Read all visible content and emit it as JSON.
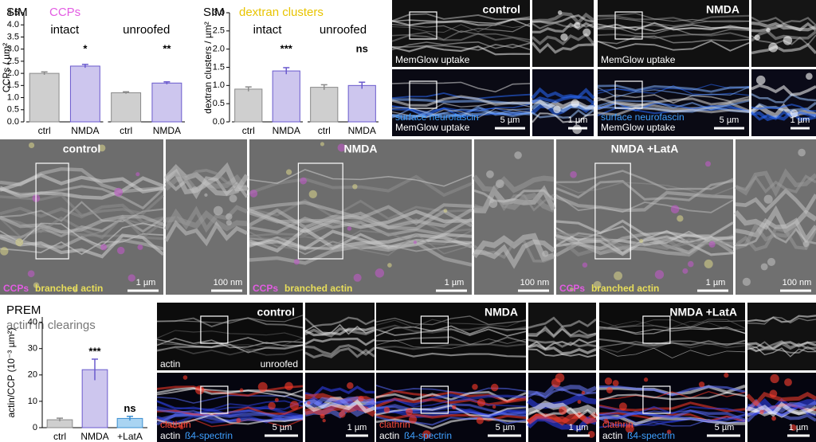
{
  "chart_data": [
    {
      "type": "bar",
      "title": "SIM",
      "subtitle": "CCPs",
      "subtitle_color": "#e35ce3",
      "ylabel": "CCPs / µm²",
      "groups": [
        "intact",
        "unroofed"
      ],
      "categories": [
        "ctrl",
        "NMDA",
        "ctrl",
        "NMDA"
      ],
      "values": [
        2.0,
        2.3,
        1.2,
        1.6
      ],
      "errors": [
        0.06,
        0.07,
        0.04,
        0.05
      ],
      "annotations": [
        null,
        "*",
        null,
        "**"
      ],
      "colors": [
        "#cfcfcf",
        "#cdc6ee",
        "#cfcfcf",
        "#cdc6ee"
      ],
      "edge_colors": [
        "#8a8a8a",
        "#6a5acd",
        "#8a8a8a",
        "#6a5acd"
      ],
      "ylim": [
        0,
        4.5
      ],
      "yticks": [
        {
          "value": 0,
          "label": "0.0"
        },
        {
          "value": 0.5,
          "label": "0.5"
        },
        {
          "value": 1,
          "label": "1.0"
        },
        {
          "value": 1.5,
          "label": "1.5"
        },
        {
          "value": 2,
          "label": "2.0"
        },
        {
          "value": 2.5,
          "label": "2.5"
        },
        {
          "value": 3,
          "label": "3.0"
        },
        {
          "value": 3.5,
          "label": "3.5"
        },
        {
          "value": 4,
          "label": "4.0"
        },
        {
          "value": 4.5,
          "label": "4.5"
        }
      ]
    },
    {
      "type": "bar",
      "title": "SIM",
      "subtitle": "dextran clusters",
      "subtitle_color": "#e8c400",
      "ylabel": "dextran clusters / µm²",
      "groups": [
        "intact",
        "unroofed"
      ],
      "categories": [
        "ctrl",
        "NMDA",
        "ctrl",
        "NMDA"
      ],
      "values": [
        0.9,
        1.4,
        0.95,
        1.0
      ],
      "errors": [
        0.06,
        0.09,
        0.07,
        0.09
      ],
      "annotations": [
        null,
        "***",
        null,
        "ns"
      ],
      "colors": [
        "#cfcfcf",
        "#cdc6ee",
        "#cfcfcf",
        "#cdc6ee"
      ],
      "edge_colors": [
        "#8a8a8a",
        "#6a5acd",
        "#8a8a8a",
        "#6a5acd"
      ],
      "ylim": [
        0,
        3
      ],
      "yticks": [
        {
          "value": 0,
          "label": "0.0"
        },
        {
          "value": 0.5,
          "label": "0.5"
        },
        {
          "value": 1,
          "label": "1.0"
        },
        {
          "value": 1.5,
          "label": "1.5"
        },
        {
          "value": 2,
          "label": "2.0"
        },
        {
          "value": 2.5,
          "label": "2.5"
        },
        {
          "value": 3,
          "label": "3.0"
        }
      ]
    },
    {
      "type": "bar",
      "title": "PREM",
      "subtitle": "actin in clearings",
      "subtitle_color": "#777777",
      "ylabel": "actin/CCP (10⁻³ µm²)",
      "categories": [
        "ctrl",
        "NMDA",
        "+LatA"
      ],
      "values": [
        3,
        22,
        3.5
      ],
      "errors": [
        0.6,
        4,
        0.8
      ],
      "annotations": [
        null,
        "***",
        "ns"
      ],
      "colors": [
        "#cfcfcf",
        "#cdc6ee",
        "#a9d4f2"
      ],
      "edge_colors": [
        "#8a8a8a",
        "#6a5acd",
        "#3b8fd1"
      ],
      "ylim": [
        0,
        42
      ],
      "yticks": [
        0,
        10,
        20,
        30,
        40
      ]
    }
  ],
  "sim_images": {
    "panels": [
      {
        "condition": "control",
        "top_label": "MemGlow uptake",
        "bottom_labels": [
          "surface neurofascin",
          "MemGlow uptake"
        ],
        "scale_main": "5 µm",
        "scale_zoom": "1 µm"
      },
      {
        "condition": "NMDA",
        "top_label": "MemGlow uptake",
        "bottom_labels": [
          "surface neurofascin",
          "MemGlow uptake"
        ],
        "scale_main": "5 µm",
        "scale_zoom": "1 µm"
      }
    ]
  },
  "prem_images": {
    "panels": [
      {
        "condition": "control",
        "labels": [
          "CCPs",
          "branched actin"
        ],
        "scale_main": "1 µm",
        "scale_zoom": "100 nm"
      },
      {
        "condition": "NMDA",
        "labels": [
          "CCPs",
          "branched actin"
        ],
        "scale_main": "1 µm",
        "scale_zoom": "100 nm"
      },
      {
        "condition": "NMDA +LatA",
        "labels": [
          "CCPs",
          "branched actin"
        ],
        "scale_main": "1 µm",
        "scale_zoom": "100 nm"
      }
    ]
  },
  "expansion_images": {
    "panels": [
      {
        "condition": "control",
        "top_labels": [
          "actin",
          "unroofed"
        ],
        "bottom_labels": [
          "clathrin",
          "actin",
          "ß4-spectrin"
        ],
        "scale_main": "5 µm",
        "scale_zoom": "1 µm"
      },
      {
        "condition": "NMDA",
        "bottom_labels": [
          "clathrin",
          "actin",
          "ß4-spectrin"
        ],
        "scale_main": "5 µm",
        "scale_zoom": "1 µm"
      },
      {
        "condition": "NMDA +LatA",
        "bottom_labels": [
          "clathrin",
          "actin",
          "ß4-spectrin"
        ],
        "scale_main": "5 µm",
        "scale_zoom": "1 µm"
      }
    ]
  }
}
